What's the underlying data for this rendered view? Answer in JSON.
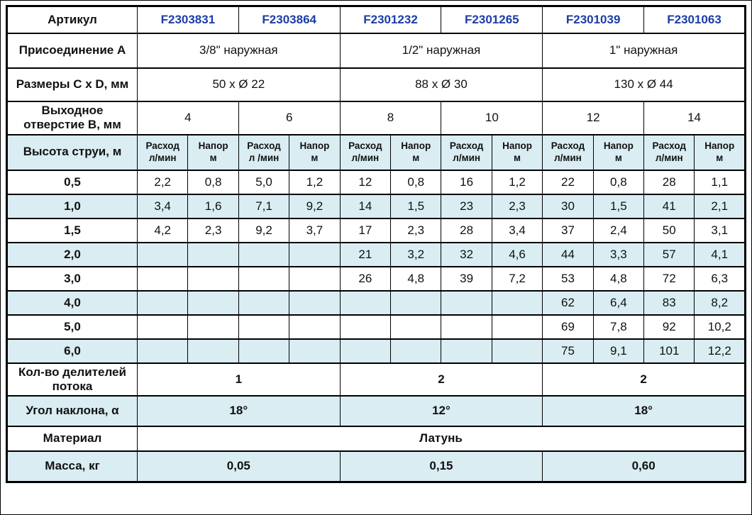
{
  "colors": {
    "article_blue": "#1c3da8",
    "row_alt_blue": "#d9edf3",
    "border": "#000000",
    "background": "#ffffff"
  },
  "table": {
    "article_row": {
      "label": "Артикул",
      "values": [
        "F2303831",
        "F2303864",
        "F2301232",
        "F2301265",
        "F2301039",
        "F2301063"
      ]
    },
    "connection_row": {
      "label": "Присоединение A",
      "values": [
        "3/8\" наружная",
        "1/2\" наружная",
        "1\" наружная"
      ]
    },
    "dimensions_row": {
      "label": "Размеры C x D, мм",
      "values": [
        "50 x Ø 22",
        "88 x Ø 30",
        "130 x Ø 44"
      ]
    },
    "outlet_row": {
      "label": "Выходное отверстие B, мм",
      "values": [
        "4",
        "6",
        "8",
        "10",
        "12",
        "14"
      ]
    },
    "header_row": {
      "label": "Высота струи, м",
      "subheaders": [
        "Расход\nл/мин",
        "Напор\nм",
        "Расход\nл /мин",
        "Напор\nм",
        "Расход\nл/мин",
        "Напор\nм",
        "Расход\nл/мин",
        "Напор\nм",
        "Расход\nл/мин",
        "Напор\nм",
        "Расход\nл/мин",
        "Напор\nм"
      ]
    },
    "data_rows": [
      {
        "label": "0,5",
        "values": [
          "2,2",
          "0,8",
          "5,0",
          "1,2",
          "12",
          "0,8",
          "16",
          "1,2",
          "22",
          "0,8",
          "28",
          "1,1"
        ]
      },
      {
        "label": "1,0",
        "values": [
          "3,4",
          "1,6",
          "7,1",
          "9,2",
          "14",
          "1,5",
          "23",
          "2,3",
          "30",
          "1,5",
          "41",
          "2,1"
        ]
      },
      {
        "label": "1,5",
        "values": [
          "4,2",
          "2,3",
          "9,2",
          "3,7",
          "17",
          "2,3",
          "28",
          "3,4",
          "37",
          "2,4",
          "50",
          "3,1"
        ]
      },
      {
        "label": "2,0",
        "values": [
          "",
          "",
          "",
          "",
          "21",
          "3,2",
          "32",
          "4,6",
          "44",
          "3,3",
          "57",
          "4,1"
        ]
      },
      {
        "label": "3,0",
        "values": [
          "",
          "",
          "",
          "",
          "26",
          "4,8",
          "39",
          "7,2",
          "53",
          "4,8",
          "72",
          "6,3"
        ]
      },
      {
        "label": "4,0",
        "values": [
          "",
          "",
          "",
          "",
          "",
          "",
          "",
          "",
          "62",
          "6,4",
          "83",
          "8,2"
        ]
      },
      {
        "label": "5,0",
        "values": [
          "",
          "",
          "",
          "",
          "",
          "",
          "",
          "",
          "69",
          "7,8",
          "92",
          "10,2"
        ]
      },
      {
        "label": "6,0",
        "values": [
          "",
          "",
          "",
          "",
          "",
          "",
          "",
          "",
          "75",
          "9,1",
          "101",
          "12,2"
        ]
      }
    ],
    "dividers_row": {
      "label": "Кол-во делителей потока",
      "values": [
        "1",
        "2",
        "2"
      ]
    },
    "angle_row": {
      "label": "Угол наклона, α",
      "values": [
        "18°",
        "12°",
        "18°"
      ]
    },
    "material_row": {
      "label": "Материал",
      "value": "Латунь"
    },
    "mass_row": {
      "label": "Масса, кг",
      "values": [
        "0,05",
        "0,15",
        "0,60"
      ]
    }
  }
}
